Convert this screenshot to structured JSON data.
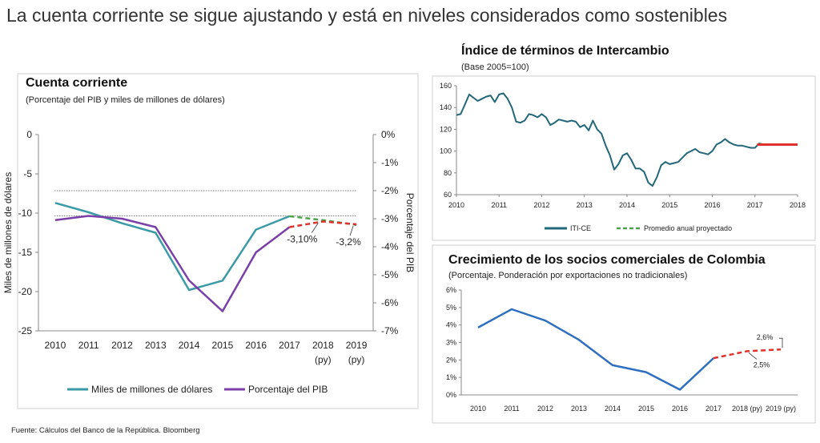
{
  "page": {
    "title": "La cuenta corriente se sigue ajustando y está en niveles considerados como sostenibles",
    "source": "Fuente: Cálculos del Banco de la República. Bloomberg"
  },
  "colors": {
    "teal": "#3a9aa6",
    "purple": "#7b3fa8",
    "red": "#e0312b",
    "green": "#4aa54a",
    "darkteal": "#23677a",
    "blue": "#2e6fc0"
  },
  "chart_data": [
    {
      "id": "cuenta-corriente",
      "type": "line",
      "title": "Cuenta corriente",
      "subtitle": "(Porcentaje del PIB y miles de millones de dólares)",
      "ylabel": "Miles de millones de dólares",
      "ylabel_right": "Porcentaje del PIB",
      "categories": [
        "2010",
        "2011",
        "2012",
        "2013",
        "2014",
        "2015",
        "2016",
        "2017",
        "2018",
        "2019"
      ],
      "category_sublabels": [
        "",
        "",
        "",
        "",
        "",
        "",
        "",
        "",
        "(py)",
        "(py)"
      ],
      "ylim": [
        -25,
        0
      ],
      "yticks": [
        0,
        -5,
        -10,
        -15,
        -20,
        -25
      ],
      "ylim_right": [
        -7,
        0
      ],
      "yticks_right": [
        "0%",
        "-1%",
        "-2%",
        "-3%",
        "-4%",
        "-5%",
        "-6%",
        "-7%"
      ],
      "reference_lines_pct": [
        -2,
        -2.9
      ],
      "series": [
        {
          "name": "Miles de millones de dólares",
          "axis": "left",
          "values": [
            -8.7,
            -9.9,
            -11.3,
            -12.5,
            -19.8,
            -18.6,
            -12.1,
            -10.4,
            -10.9,
            -11.5
          ],
          "projected_from": 7
        },
        {
          "name": "Porcentaje del PIB",
          "axis": "right",
          "values": [
            -3.05,
            -2.9,
            -3.0,
            -3.3,
            -5.2,
            -6.3,
            -4.2,
            -3.3,
            -3.1,
            -3.2
          ],
          "projected_from": 7
        }
      ],
      "annotations": [
        "-3,10%",
        "-3,2%"
      ]
    },
    {
      "id": "terminos-intercambio",
      "type": "line",
      "title": "Índice de términos de Intercambio",
      "subtitle": "(Base 2005=100)",
      "x_ticks": [
        "2010",
        "2011",
        "2012",
        "2013",
        "2014",
        "2015",
        "2016",
        "2017",
        "2018"
      ],
      "xlim": [
        2010,
        2018
      ],
      "ylim": [
        60,
        160
      ],
      "yticks": [
        60,
        80,
        100,
        120,
        140,
        160
      ],
      "series": [
        {
          "name": "ITI-CE",
          "x": [
            2010.0,
            2010.1,
            2010.2,
            2010.3,
            2010.4,
            2010.5,
            2010.6,
            2010.7,
            2010.8,
            2010.9,
            2011.0,
            2011.1,
            2011.2,
            2011.3,
            2011.4,
            2011.5,
            2011.6,
            2011.7,
            2011.8,
            2011.9,
            2012.0,
            2012.1,
            2012.2,
            2012.3,
            2012.4,
            2012.5,
            2012.6,
            2012.7,
            2012.8,
            2012.9,
            2013.0,
            2013.1,
            2013.2,
            2013.3,
            2013.4,
            2013.5,
            2013.6,
            2013.7,
            2013.8,
            2013.9,
            2014.0,
            2014.1,
            2014.2,
            2014.3,
            2014.4,
            2014.5,
            2014.6,
            2014.7,
            2014.8,
            2014.9,
            2015.0,
            2015.1,
            2015.2,
            2015.3,
            2015.4,
            2015.5,
            2015.6,
            2015.7,
            2015.8,
            2015.9,
            2016.0,
            2016.1,
            2016.2,
            2016.3,
            2016.4,
            2016.5,
            2016.6,
            2016.7,
            2016.8,
            2016.9,
            2017.0,
            2017.1,
            2017.2
          ],
          "values": [
            133,
            134,
            143,
            152,
            149,
            146,
            148,
            150,
            151,
            145,
            152,
            153,
            148,
            140,
            127,
            126,
            128,
            134,
            133,
            131,
            134,
            131,
            124,
            126,
            129,
            128,
            127,
            128,
            127,
            122,
            124,
            119,
            128,
            120,
            116,
            105,
            96,
            83,
            88,
            96,
            98,
            92,
            84,
            84,
            81,
            71,
            68,
            76,
            87,
            90,
            88,
            89,
            90,
            94,
            98,
            100,
            102,
            99,
            98,
            97,
            100,
            106,
            108,
            111,
            108,
            106,
            105,
            105,
            104,
            103,
            103,
            107,
            106
          ]
        },
        {
          "name": "Promedio anual proyectado",
          "x": [
            2017.3,
            2018
          ],
          "values": [
            106,
            106
          ]
        }
      ],
      "projection_line": {
        "x": [
          2017.0,
          2018.0
        ],
        "value": 106
      }
    },
    {
      "id": "socios-comerciales",
      "type": "line",
      "title": "Crecimiento de los socios comerciales de Colombia",
      "subtitle": "(Porcentaje. Ponderación por exportaciones no tradicionales)",
      "categories": [
        "2010",
        "2011",
        "2012",
        "2013",
        "2014",
        "2015",
        "2016",
        "2017",
        "2018 (py)",
        "2019 (py)"
      ],
      "ylim": [
        0,
        6
      ],
      "yticks": [
        "0%",
        "1%",
        "2%",
        "3%",
        "4%",
        "5%",
        "6%"
      ],
      "series": [
        {
          "name": "Crecimiento",
          "values": [
            3.85,
            4.9,
            4.25,
            3.15,
            1.7,
            1.3,
            0.3,
            2.1,
            2.5,
            2.6
          ],
          "projected_from": 7
        }
      ],
      "annotations": [
        "2,6%",
        "2,5%"
      ]
    }
  ],
  "legends": {
    "cuenta": [
      "Miles de millones de dólares",
      "Porcentaje del PIB"
    ],
    "iti": [
      "ITI-CE",
      "Promedio anual proyectado"
    ]
  }
}
